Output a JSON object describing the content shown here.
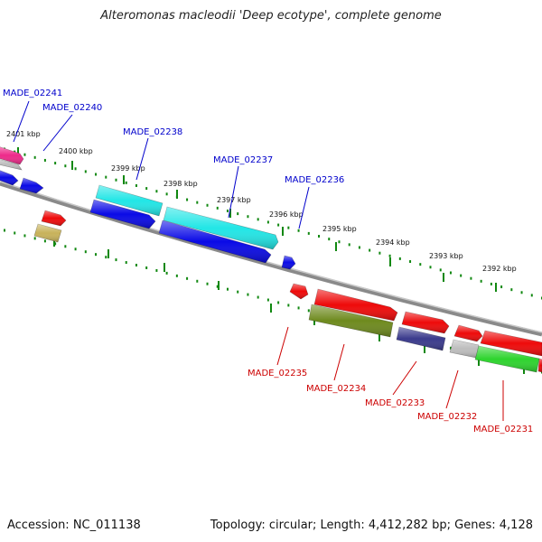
{
  "title": "Alteromonas macleodii 'Deep ecotype', complete genome",
  "footer": {
    "accession": "Accession: NC_011138",
    "topology": "Topology: circular; Length: 4,412,282 bp; Genes: 4,128"
  },
  "ruler_labels": [
    "2401 kbp",
    "2400 kbp",
    "2399 kbp",
    "2398 kbp",
    "2397 kbp",
    "2396 kbp",
    "2395 kbp",
    "2394 kbp",
    "2393 kbp",
    "2392 kbp"
  ],
  "gene_labels_top": [
    "MADE_02241",
    "MADE_02240",
    "MADE_02238",
    "MADE_02237",
    "MADE_02236"
  ],
  "gene_labels_bottom": [
    "MADE_02235",
    "MADE_02234",
    "MADE_02233",
    "MADE_02232",
    "MADE_02231"
  ],
  "colors": {
    "blue": "#0a0ae6",
    "cyan": "#22e6e6",
    "red": "#ee0a0a",
    "olive": "#6e8a1e",
    "tan": "#c8b25a",
    "navy": "#3a3a8c",
    "gray": "#bdbdbd",
    "green": "#2ed42e",
    "pink": "#ee2a8a",
    "label_blue": "#0000cc",
    "label_red": "#cc0000",
    "tick_green": "#118811"
  }
}
